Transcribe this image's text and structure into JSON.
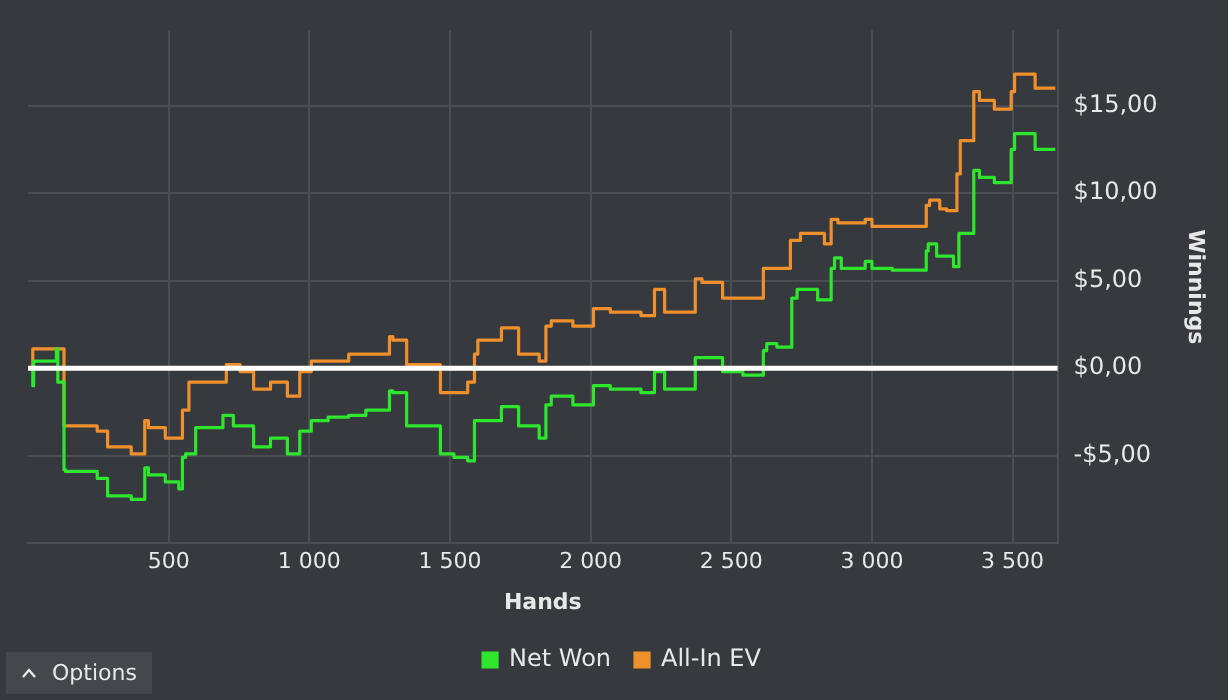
{
  "chart_data": {
    "type": "step",
    "xlabel": "Hands",
    "ylabel": "Winnings",
    "xlim": [
      0,
      3660
    ],
    "ylim": [
      -10,
      19.3
    ],
    "xticks": [
      500,
      {
        "value": 1000,
        "label": "1 000"
      },
      {
        "value": 1500,
        "label": "1 500"
      },
      {
        "value": 2000,
        "label": "2 000"
      },
      {
        "value": 2500,
        "label": "2 500"
      },
      {
        "value": 3000,
        "label": "3 000"
      },
      {
        "value": 3500,
        "label": "3 500"
      }
    ],
    "yticks": [
      {
        "value": -5,
        "label": "-$5,00"
      },
      {
        "value": 0,
        "label": "$0,00"
      },
      {
        "value": 5,
        "label": "$5,00"
      },
      {
        "value": 10,
        "label": "$10,00"
      },
      {
        "value": 15,
        "label": "$15,00"
      }
    ],
    "grid": true,
    "legend": "bottom",
    "marker": "none",
    "line_style": "solid",
    "ref_lines": [
      {
        "axis": "y",
        "value": 0,
        "color": "#ffffff"
      }
    ],
    "annotations": [
      "Options"
    ],
    "series": [
      {
        "name": "Net Won",
        "color": "#2ee62e",
        "x": [
          17,
          20,
          22,
          101,
          106,
          118,
          128,
          133,
          246,
          283,
          367,
          415,
          428,
          488,
          536,
          549,
          560,
          596,
          609,
          693,
          730,
          802,
          862,
          922,
          966,
          1007,
          1067,
          1140,
          1201,
          1285,
          1297,
          1346,
          1394,
          1466,
          1514,
          1563,
          1587,
          1599,
          1683,
          1744,
          1817,
          1841,
          1860,
          1937,
          2010,
          2070,
          2130,
          2179,
          2227,
          2263,
          2300,
          2372,
          2396,
          2469,
          2541,
          2614,
          2626,
          2662,
          2715,
          2734,
          2807,
          2855,
          2867,
          2891,
          2976,
          3000,
          3072,
          3193,
          3200,
          3230,
          3290,
          3309,
          3314,
          3362,
          3382,
          3435,
          3495,
          3507,
          3580,
          3652
        ],
        "values": [
          0,
          -1,
          0.4,
          0.4,
          1.1,
          -0.8,
          -0.8,
          -5.8,
          -5.9,
          -6.3,
          -7.3,
          -7.5,
          -5.7,
          -6.1,
          -6.5,
          -6.9,
          -5.1,
          -4.9,
          -3.4,
          -3.4,
          -2.7,
          -3.3,
          -4.5,
          -4,
          -4.9,
          -3.6,
          -3,
          -2.8,
          -2.7,
          -2.4,
          -1.3,
          -1.4,
          -3.3,
          -3.3,
          -4.9,
          -5.1,
          -5.3,
          -3,
          -3,
          -2.2,
          -3.3,
          -4,
          -2.1,
          -1.6,
          -2.1,
          -1,
          -1.2,
          -1.2,
          -1.4,
          -0.2,
          -1.2,
          -1.2,
          0.6,
          0.6,
          -0.2,
          -0.4,
          1,
          1.4,
          1.2,
          4,
          4.5,
          3.9,
          5.7,
          6.3,
          5.7,
          6.1,
          5.7,
          5.6,
          6.7,
          7.1,
          6.4,
          5.8,
          7.7,
          7.7,
          11.3,
          10.9,
          10.6,
          12.5,
          13.4,
          12.5
        ]
      },
      {
        "name": "All-In EV",
        "color": "#f0902c",
        "x": [
          17,
          101,
          128,
          133,
          246,
          283,
          367,
          415,
          428,
          488,
          549,
          572,
          609,
          705,
          754,
          802,
          862,
          922,
          966,
          1007,
          1067,
          1140,
          1188,
          1285,
          1297,
          1346,
          1394,
          1466,
          1514,
          1563,
          1587,
          1599,
          1683,
          1744,
          1817,
          1841,
          1860,
          1937,
          2010,
          2070,
          2130,
          2179,
          2227,
          2263,
          2300,
          2372,
          2396,
          2469,
          2541,
          2614,
          2626,
          2710,
          2746,
          2831,
          2855,
          2879,
          2976,
          3000,
          3072,
          3193,
          3205,
          3241,
          3266,
          3302,
          3314,
          3362,
          3382,
          3435,
          3495,
          3507,
          3580,
          3652
        ],
        "values": [
          0,
          1.1,
          1.1,
          -3.3,
          -3.3,
          -3.6,
          -4.5,
          -4.9,
          -3,
          -3.4,
          -4,
          -2.4,
          -0.8,
          -0.8,
          0.2,
          -0.2,
          -1.2,
          -0.8,
          -1.6,
          -0.2,
          0.4,
          0.4,
          0.8,
          0.8,
          1.8,
          1.6,
          0.2,
          0.2,
          -1.4,
          -1.4,
          -0.8,
          0.8,
          1.6,
          2.3,
          0.8,
          0.4,
          2.4,
          2.7,
          2.4,
          3.4,
          3.2,
          3.2,
          3,
          4.5,
          3.2,
          3.2,
          5.1,
          4.9,
          4,
          4,
          5.7,
          5.7,
          7.3,
          7.7,
          7.1,
          8.5,
          8.3,
          8.5,
          8.1,
          8.1,
          9.3,
          9.6,
          9.1,
          9,
          11.1,
          13,
          15.8,
          15.3,
          14.8,
          15.8,
          16.8,
          16
        ]
      }
    ]
  }
}
